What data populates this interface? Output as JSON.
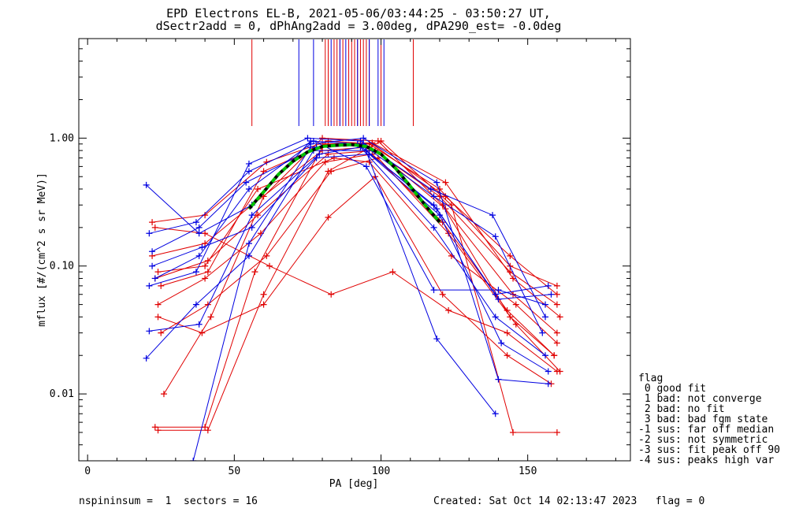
{
  "chart_data": {
    "type": "line",
    "title_line1": "EPD Electrons EL-B, 2021-05-06/03:44:25 - 03:50:27 UT,",
    "title_line2": "dSectr2add = 0, dPhAng2add = 3.00deg, dPA290_est=  -0.0deg",
    "xlabel": "PA [deg]",
    "ylabel": "mflux [#/(cm^2 s sr MeV)]",
    "xlim": [
      -3,
      185
    ],
    "ylim": [
      0.003,
      6.0
    ],
    "yscale": "log",
    "x_ticks": [
      0,
      50,
      100,
      150
    ],
    "x_tick_labels": [
      "0",
      "50",
      "100",
      "150"
    ],
    "y_ticks": [
      0.01,
      0.1,
      1.0
    ],
    "y_tick_labels": [
      "0.01",
      "0.10",
      "1.00"
    ],
    "colors": {
      "red": "#e00000",
      "blue": "#0000e0",
      "fit_black": "#000000",
      "fit_green": "#00c000"
    },
    "series": [
      {
        "color": "red",
        "x": [
          22,
          40,
          56,
          80,
          96,
          120,
          144,
          160
        ],
        "y": [
          0.12,
          0.15,
          0.3,
          0.8,
          0.85,
          0.35,
          0.09,
          0.05
        ]
      },
      {
        "color": "red",
        "x": [
          23,
          41,
          58,
          82,
          98,
          122,
          145,
          160
        ],
        "y": [
          0.08,
          0.11,
          0.25,
          0.75,
          0.8,
          0.28,
          0.06,
          0.03
        ]
      },
      {
        "color": "red",
        "x": [
          24,
          40,
          59,
          81,
          97,
          121,
          143,
          159
        ],
        "y": [
          0.05,
          0.08,
          0.18,
          0.65,
          0.75,
          0.22,
          0.045,
          0.02
        ]
      },
      {
        "color": "red",
        "x": [
          25,
          41,
          61,
          83,
          99,
          123,
          146,
          161
        ],
        "y": [
          0.03,
          0.05,
          0.12,
          0.55,
          0.7,
          0.18,
          0.035,
          0.015
        ]
      },
      {
        "color": "red",
        "x": [
          23,
          40,
          57,
          80,
          96,
          120,
          144,
          160
        ],
        "y": [
          0.0055,
          0.0055,
          0.09,
          0.85,
          0.9,
          0.4,
          0.1,
          0.07
        ]
      },
      {
        "color": "red",
        "x": [
          24,
          41,
          60,
          82,
          100,
          124,
          145,
          160
        ],
        "y": [
          0.0052,
          0.0052,
          0.06,
          0.55,
          0.95,
          0.3,
          0.005,
          0.005
        ]
      },
      {
        "color": "red",
        "x": [
          22,
          40,
          61,
          82,
          97,
          122,
          144,
          160
        ],
        "y": [
          0.22,
          0.25,
          0.65,
          0.95,
          0.9,
          0.35,
          0.12,
          0.06
        ]
      },
      {
        "color": "red",
        "x": [
          24,
          39,
          60,
          82,
          98,
          121,
          143,
          158
        ],
        "y": [
          0.04,
          0.03,
          0.05,
          0.24,
          0.5,
          0.06,
          0.02,
          0.012
        ]
      },
      {
        "color": "red",
        "x": [
          23,
          40,
          62,
          83,
          104,
          123,
          143,
          160
        ],
        "y": [
          0.2,
          0.18,
          0.1,
          0.06,
          0.09,
          0.045,
          0.03,
          0.015
        ]
      },
      {
        "color": "red",
        "x": [
          25,
          41,
          60,
          81,
          97,
          122,
          145,
          161
        ],
        "y": [
          0.07,
          0.09,
          0.55,
          0.9,
          0.92,
          0.45,
          0.08,
          0.04
        ]
      },
      {
        "color": "red",
        "x": [
          26,
          42,
          60,
          80,
          99,
          121,
          144,
          159
        ],
        "y": [
          0.01,
          0.04,
          0.35,
          1.0,
          0.95,
          0.3,
          0.04,
          0.02
        ]
      },
      {
        "color": "red",
        "x": [
          24,
          40,
          58,
          84,
          96,
          124,
          146,
          160
        ],
        "y": [
          0.09,
          0.1,
          0.4,
          0.7,
          0.65,
          0.12,
          0.05,
          0.025
        ]
      },
      {
        "color": "blue",
        "x": [
          20,
          38,
          56,
          76,
          92,
          118,
          139,
          157
        ],
        "y": [
          0.43,
          0.18,
          0.3,
          0.95,
          0.9,
          0.3,
          0.06,
          0.07
        ]
      },
      {
        "color": "blue",
        "x": [
          21,
          37,
          55,
          75,
          93,
          117,
          138,
          156
        ],
        "y": [
          0.07,
          0.09,
          0.63,
          1.0,
          0.95,
          0.4,
          0.25,
          0.04
        ]
      },
      {
        "color": "blue",
        "x": [
          22,
          38,
          54,
          78,
          94,
          118,
          139,
          155
        ],
        "y": [
          0.13,
          0.2,
          0.45,
          0.85,
          0.88,
          0.35,
          0.17,
          0.03
        ]
      },
      {
        "color": "blue",
        "x": [
          20,
          37,
          55,
          77,
          95,
          119,
          140,
          158
        ],
        "y": [
          0.019,
          0.05,
          0.12,
          0.8,
          0.8,
          0.28,
          0.055,
          0.06
        ]
      },
      {
        "color": "blue",
        "x": [
          21,
          38,
          56,
          79,
          93,
          118,
          139,
          156
        ],
        "y": [
          0.031,
          0.035,
          0.25,
          0.75,
          0.85,
          0.2,
          0.04,
          0.02
        ]
      },
      {
        "color": "blue",
        "x": [
          22,
          39,
          56,
          78,
          96,
          120,
          141,
          157
        ],
        "y": [
          0.1,
          0.14,
          0.2,
          0.7,
          0.75,
          0.25,
          0.025,
          0.015
        ]
      },
      {
        "color": "blue",
        "x": [
          23,
          38,
          55,
          76,
          94,
          119,
          140,
          157
        ],
        "y": [
          0.08,
          0.12,
          0.4,
          0.9,
          1.0,
          0.45,
          0.013,
          0.012
        ]
      },
      {
        "color": "blue",
        "x": [
          36,
          55,
          76,
          94,
          119,
          139
        ],
        "y": [
          0.003,
          0.15,
          0.85,
          0.9,
          0.027,
          0.007
        ]
      },
      {
        "color": "blue",
        "x": [
          21,
          37,
          55,
          77,
          95,
          118,
          140,
          156
        ],
        "y": [
          0.18,
          0.22,
          0.55,
          0.95,
          0.6,
          0.065,
          0.065,
          0.05
        ]
      }
    ],
    "fit_curve": {
      "x": [
        55,
        60,
        65,
        70,
        75,
        80,
        85,
        90,
        95,
        100,
        105,
        110,
        115,
        120
      ],
      "y": [
        0.28,
        0.38,
        0.52,
        0.66,
        0.78,
        0.86,
        0.88,
        0.89,
        0.86,
        0.75,
        0.58,
        0.42,
        0.3,
        0.22
      ]
    },
    "vlines_red": [
      56,
      81,
      82,
      84,
      85,
      86,
      87,
      89,
      90,
      91,
      92,
      93,
      94,
      95,
      96,
      100,
      111
    ],
    "vlines_blue": [
      72,
      77,
      83,
      86,
      88,
      92,
      96,
      99,
      101
    ]
  },
  "legend": {
    "title": "flag",
    "items": [
      " 0 good fit",
      " 1 bad: not converge",
      " 2 bad: no fit",
      " 3 bad: bad fgm state",
      "-1 sus: far off median",
      "-2 sus: not symmetric",
      "-3 sus: fit peak off 90",
      "-4 sus: peaks high var"
    ]
  },
  "footer": {
    "left": "nspininsum =  1  sectors = 16",
    "right": "Created: Sat Oct 14 02:13:47 2023   flag = 0"
  }
}
